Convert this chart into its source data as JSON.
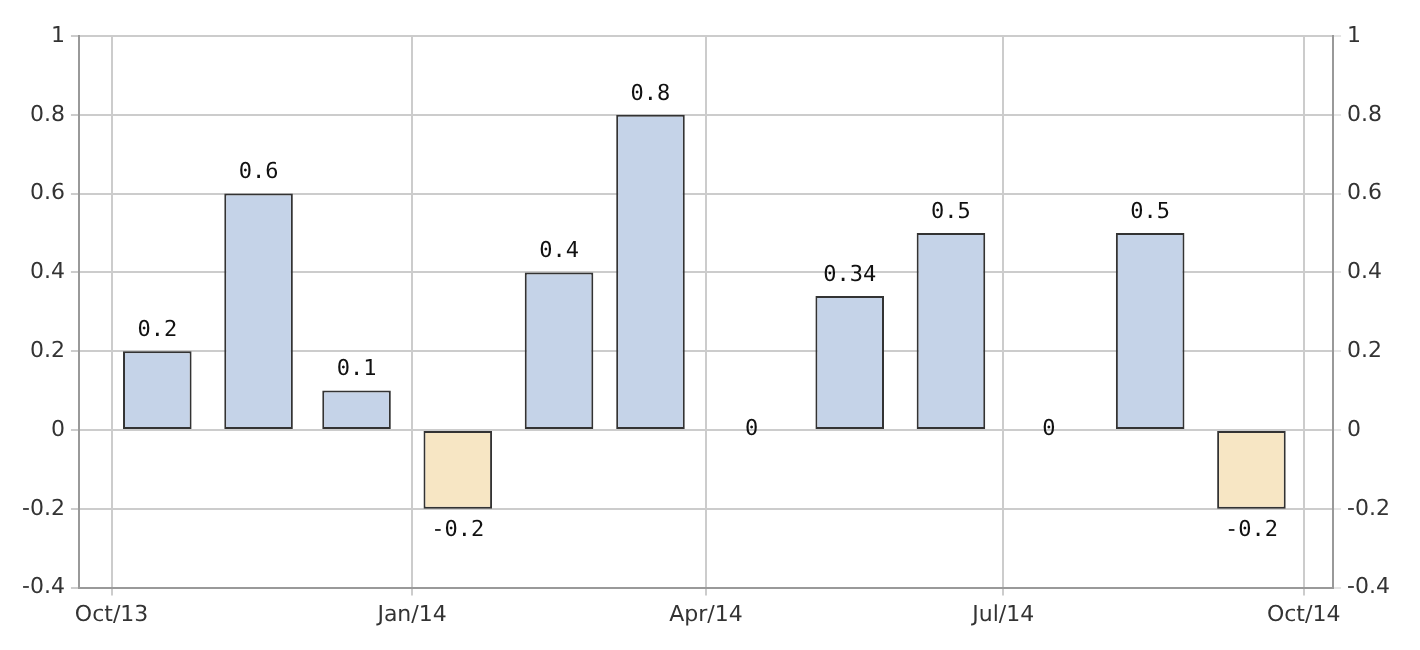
{
  "chart_data": {
    "type": "bar",
    "x": [
      "2013-10-15",
      "2013-11-15",
      "2013-12-15",
      "2014-01-15",
      "2014-02-15",
      "2014-03-15",
      "2014-04-15",
      "2014-05-15",
      "2014-06-15",
      "2014-07-15",
      "2014-08-15",
      "2014-09-15"
    ],
    "values": [
      0.2,
      0.6,
      0.1,
      -0.2,
      0.4,
      0.8,
      0,
      0.34,
      0.5,
      0,
      0.5,
      -0.2
    ],
    "colors": [
      "#c5d3e8",
      "#c5d3e8",
      "#c5d3e8",
      "#f7e6c4",
      "#c5d3e8",
      "#c5d3e8",
      "#c5d3e8",
      "#c5d3e8",
      "#c5d3e8",
      "#c5d3e8",
      "#c5d3e8",
      "#f7e6c4"
    ],
    "data_labels": true,
    "xlim": [
      "2013-09-21",
      "2014-10-10"
    ],
    "xticks": [
      {
        "value": "2013-10-01",
        "label": "Oct/13"
      },
      {
        "value": "2014-01-01",
        "label": "Jan/14"
      },
      {
        "value": "2014-04-01",
        "label": "Apr/14"
      },
      {
        "value": "2014-07-01",
        "label": "Jul/14"
      },
      {
        "value": "2014-10-01",
        "label": "Oct/14"
      }
    ],
    "ylim": [
      -0.4,
      1
    ],
    "yticks": [
      -0.4,
      -0.2,
      0,
      0.2,
      0.4,
      0.6,
      0.8,
      1
    ],
    "y2lim": [
      -0.4,
      1
    ],
    "y2ticks": [
      -0.4,
      -0.2,
      0,
      0.2,
      0.4,
      0.6,
      0.8,
      1
    ],
    "grid": true,
    "legend": false
  }
}
